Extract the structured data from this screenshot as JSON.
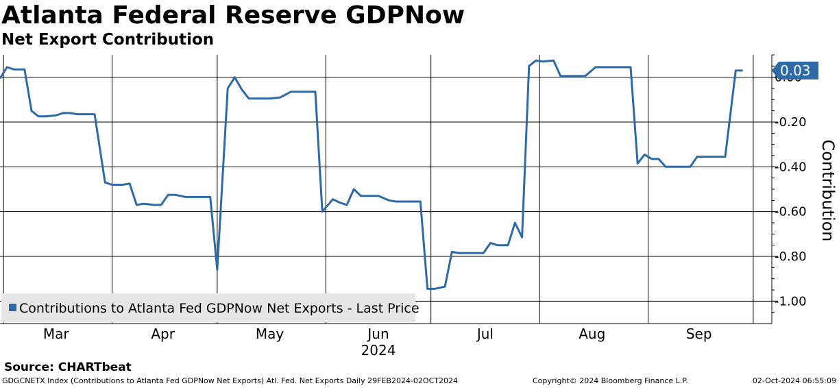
{
  "header": {
    "title": "Atlanta Federal Reserve GDPNow",
    "subtitle": "Net Export Contribution"
  },
  "footer": {
    "source": "Source: CHARTbeat",
    "left": "GDGCNETX Index (Contributions to Atlanta Fed GDPNow Net Exports) Atl. Fed. Net Exports  Daily 29FEB2024-02OCT2024",
    "copyright": "Copyright© 2024 Bloomberg Finance L.P.",
    "timestamp": "02-Oct-2024 06:55:09"
  },
  "chart_data": {
    "type": "line",
    "title": "Atlanta Federal Reserve GDPNow",
    "subtitle": "Net Export Contribution",
    "ylabel": "Contribution",
    "xlabel": "",
    "ylim": [
      -1.1,
      0.1
    ],
    "yticks": [
      0.0,
      -0.2,
      -0.4,
      -0.6,
      -0.8,
      -1.0
    ],
    "ytick_labels": [
      "0.00",
      "-0.20",
      "-0.40",
      "-0.60",
      "-0.80",
      "-1.00"
    ],
    "xlim_days": [
      0,
      216
    ],
    "month_gridlines_days": [
      1,
      32,
      62,
      93,
      123,
      154,
      185,
      215
    ],
    "month_labels": [
      {
        "label": "Mar",
        "day": 16
      },
      {
        "label": "Apr",
        "day": 46.5
      },
      {
        "label": "May",
        "day": 77
      },
      {
        "label": "Jun",
        "day": 108
      },
      {
        "label": "Jul",
        "day": 138.5
      },
      {
        "label": "Aug",
        "day": 169
      },
      {
        "label": "Sep",
        "day": 199.5
      }
    ],
    "year_label": {
      "label": "2024",
      "day": 108
    },
    "grid": true,
    "legend_position": "bottom-left",
    "last_value_label": "0.03",
    "series": [
      {
        "name": "Contributions to Atlanta Fed GDPNow Net Exports - Last Price",
        "color": "#2e6aa5",
        "points": [
          [
            0,
            -0.005
          ],
          [
            2,
            0.045
          ],
          [
            4,
            0.035
          ],
          [
            7,
            0.035
          ],
          [
            9,
            -0.15
          ],
          [
            11,
            -0.175
          ],
          [
            13,
            -0.175
          ],
          [
            16,
            -0.17
          ],
          [
            18,
            -0.16
          ],
          [
            20,
            -0.16
          ],
          [
            22,
            -0.165
          ],
          [
            27,
            -0.165
          ],
          [
            30,
            -0.47
          ],
          [
            32,
            -0.48
          ],
          [
            35,
            -0.48
          ],
          [
            37,
            -0.475
          ],
          [
            39,
            -0.57
          ],
          [
            41,
            -0.565
          ],
          [
            44,
            -0.57
          ],
          [
            46,
            -0.57
          ],
          [
            48,
            -0.525
          ],
          [
            50,
            -0.525
          ],
          [
            53,
            -0.535
          ],
          [
            60,
            -0.535
          ],
          [
            62,
            -0.86
          ],
          [
            65,
            -0.05
          ],
          [
            67,
            0.0
          ],
          [
            69,
            -0.055
          ],
          [
            71,
            -0.095
          ],
          [
            77,
            -0.095
          ],
          [
            80,
            -0.09
          ],
          [
            83,
            -0.065
          ],
          [
            90,
            -0.065
          ],
          [
            92,
            -0.6
          ],
          [
            95,
            -0.545
          ],
          [
            97,
            -0.56
          ],
          [
            99,
            -0.57
          ],
          [
            101,
            -0.5
          ],
          [
            103,
            -0.53
          ],
          [
            108,
            -0.53
          ],
          [
            111,
            -0.55
          ],
          [
            113,
            -0.555
          ],
          [
            120,
            -0.555
          ],
          [
            122,
            -0.945
          ],
          [
            124,
            -0.945
          ],
          [
            127,
            -0.935
          ],
          [
            129,
            -0.78
          ],
          [
            131,
            -0.785
          ],
          [
            138,
            -0.785
          ],
          [
            140,
            -0.74
          ],
          [
            142,
            -0.75
          ],
          [
            145,
            -0.75
          ],
          [
            147,
            -0.65
          ],
          [
            149,
            -0.715
          ],
          [
            151,
            0.05
          ],
          [
            153,
            0.075
          ],
          [
            155,
            0.07
          ],
          [
            158,
            0.075
          ],
          [
            160,
            0.005
          ],
          [
            167,
            0.005
          ],
          [
            170,
            0.045
          ],
          [
            178,
            0.045
          ],
          [
            180,
            0.045
          ],
          [
            182,
            -0.385
          ],
          [
            184,
            -0.345
          ],
          [
            186,
            -0.365
          ],
          [
            188,
            -0.365
          ],
          [
            190,
            -0.4
          ],
          [
            195,
            -0.4
          ],
          [
            197,
            -0.4
          ],
          [
            199,
            -0.355
          ],
          [
            207,
            -0.355
          ],
          [
            210,
            0.03
          ],
          [
            212,
            0.03
          ]
        ]
      }
    ]
  }
}
